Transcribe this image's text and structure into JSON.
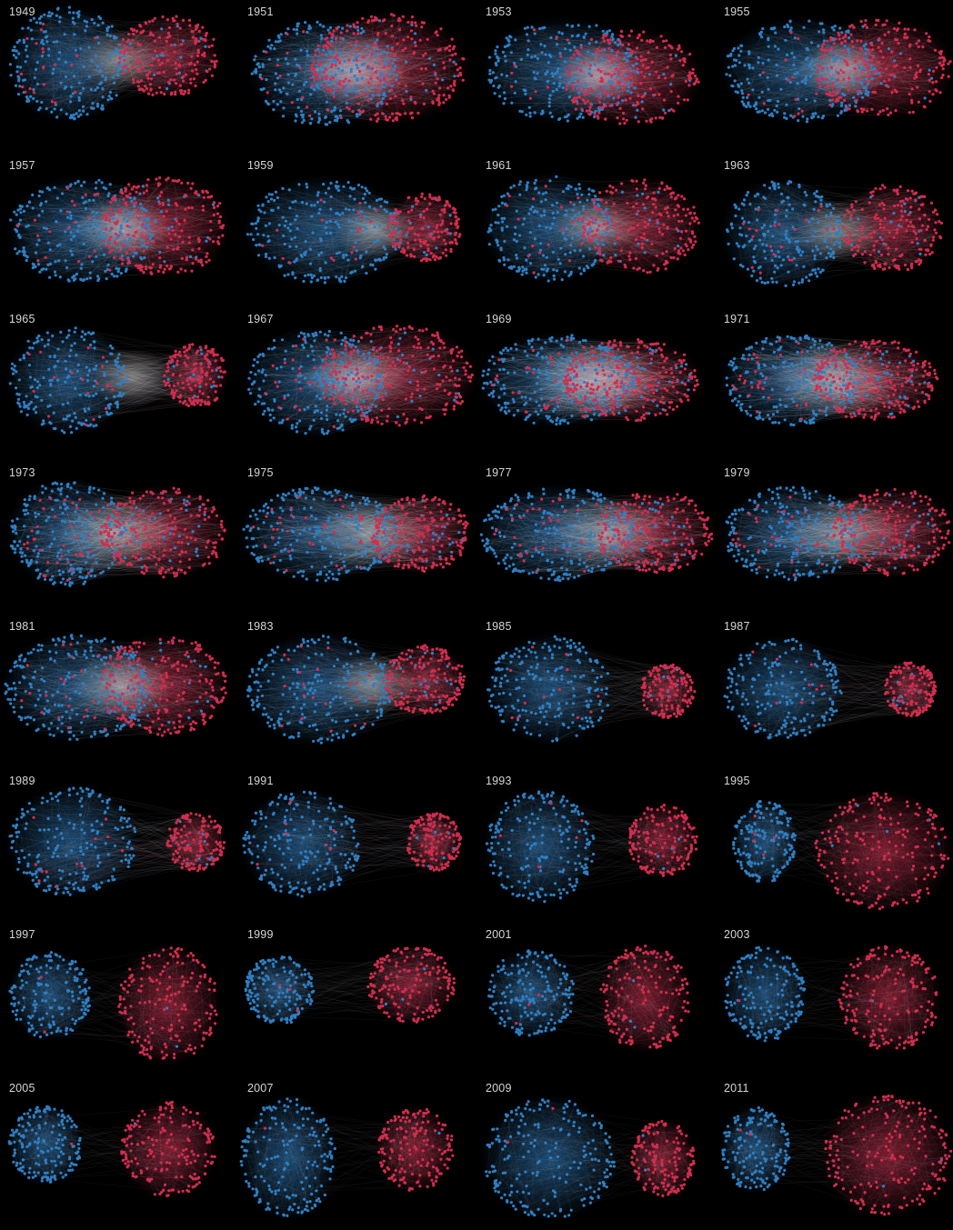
{
  "colors": {
    "background": "#000000",
    "democrat": "#2f7fc4",
    "republican": "#d22d4e",
    "edge": "#ffffff",
    "label": "#d6d6d6"
  },
  "panels": [
    {
      "year": "1949",
      "blue_cluster": "large-left",
      "red_cluster": "right",
      "mixing": 0.35
    },
    {
      "year": "1951",
      "blue_cluster": "left",
      "red_cluster": "right",
      "mixing": 0.6
    },
    {
      "year": "1953",
      "blue_cluster": "left",
      "red_cluster": "right",
      "mixing": 0.35
    },
    {
      "year": "1955",
      "blue_cluster": "left",
      "red_cluster": "right",
      "mixing": 0.35
    },
    {
      "year": "1957",
      "blue_cluster": "left",
      "red_cluster": "right",
      "mixing": 0.45
    },
    {
      "year": "1959",
      "blue_cluster": "large-left",
      "red_cluster": "small-right",
      "mixing": 0.3
    },
    {
      "year": "1961",
      "blue_cluster": "left",
      "red_cluster": "right",
      "mixing": 0.35
    },
    {
      "year": "1963",
      "blue_cluster": "left",
      "red_cluster": "right",
      "mixing": 0.35
    },
    {
      "year": "1965",
      "blue_cluster": "large-left",
      "red_cluster": "small-right",
      "mixing": 0.3
    },
    {
      "year": "1967",
      "blue_cluster": "left",
      "red_cluster": "right",
      "mixing": 0.55
    },
    {
      "year": "1969",
      "blue_cluster": "mixed",
      "red_cluster": "mixed",
      "mixing": 0.85
    },
    {
      "year": "1971",
      "blue_cluster": "mixed",
      "red_cluster": "mixed",
      "mixing": 0.75
    },
    {
      "year": "1973",
      "blue_cluster": "left",
      "red_cluster": "right",
      "mixing": 0.7
    },
    {
      "year": "1975",
      "blue_cluster": "large-left",
      "red_cluster": "right",
      "mixing": 0.6
    },
    {
      "year": "1977",
      "blue_cluster": "large-left",
      "red_cluster": "right",
      "mixing": 0.65
    },
    {
      "year": "1979",
      "blue_cluster": "left",
      "red_cluster": "right",
      "mixing": 0.6
    },
    {
      "year": "1981",
      "blue_cluster": "left",
      "red_cluster": "right",
      "mixing": 0.5
    },
    {
      "year": "1983",
      "blue_cluster": "large-left",
      "red_cluster": "small-right",
      "mixing": 0.35
    },
    {
      "year": "1985",
      "blue_cluster": "large-left",
      "red_cluster": "small-right",
      "mixing": 0.2
    },
    {
      "year": "1987",
      "blue_cluster": "large-left",
      "red_cluster": "small-right",
      "mixing": 0.15
    },
    {
      "year": "1989",
      "blue_cluster": "large-left",
      "red_cluster": "small-right",
      "mixing": 0.2
    },
    {
      "year": "1991",
      "blue_cluster": "large-left",
      "red_cluster": "small-right",
      "mixing": 0.12
    },
    {
      "year": "1993",
      "blue_cluster": "large-left",
      "red_cluster": "small-right",
      "mixing": 0.08
    },
    {
      "year": "1995",
      "blue_cluster": "small-left",
      "red_cluster": "large-right",
      "mixing": 0.08
    },
    {
      "year": "1997",
      "blue_cluster": "small-left",
      "red_cluster": "large-right",
      "mixing": 0.03
    },
    {
      "year": "1999",
      "blue_cluster": "small-left",
      "red_cluster": "right",
      "mixing": 0.05
    },
    {
      "year": "2001",
      "blue_cluster": "left",
      "red_cluster": "right",
      "mixing": 0.05
    },
    {
      "year": "2003",
      "blue_cluster": "left",
      "red_cluster": "right",
      "mixing": 0.02
    },
    {
      "year": "2005",
      "blue_cluster": "small-left",
      "red_cluster": "right",
      "mixing": 0.02
    },
    {
      "year": "2007",
      "blue_cluster": "large-left",
      "red_cluster": "right",
      "mixing": 0.02
    },
    {
      "year": "2009",
      "blue_cluster": "large-left",
      "red_cluster": "small-right",
      "mixing": 0.03
    },
    {
      "year": "2011",
      "blue_cluster": "left",
      "red_cluster": "large-right",
      "mixing": 0.03
    }
  ]
}
